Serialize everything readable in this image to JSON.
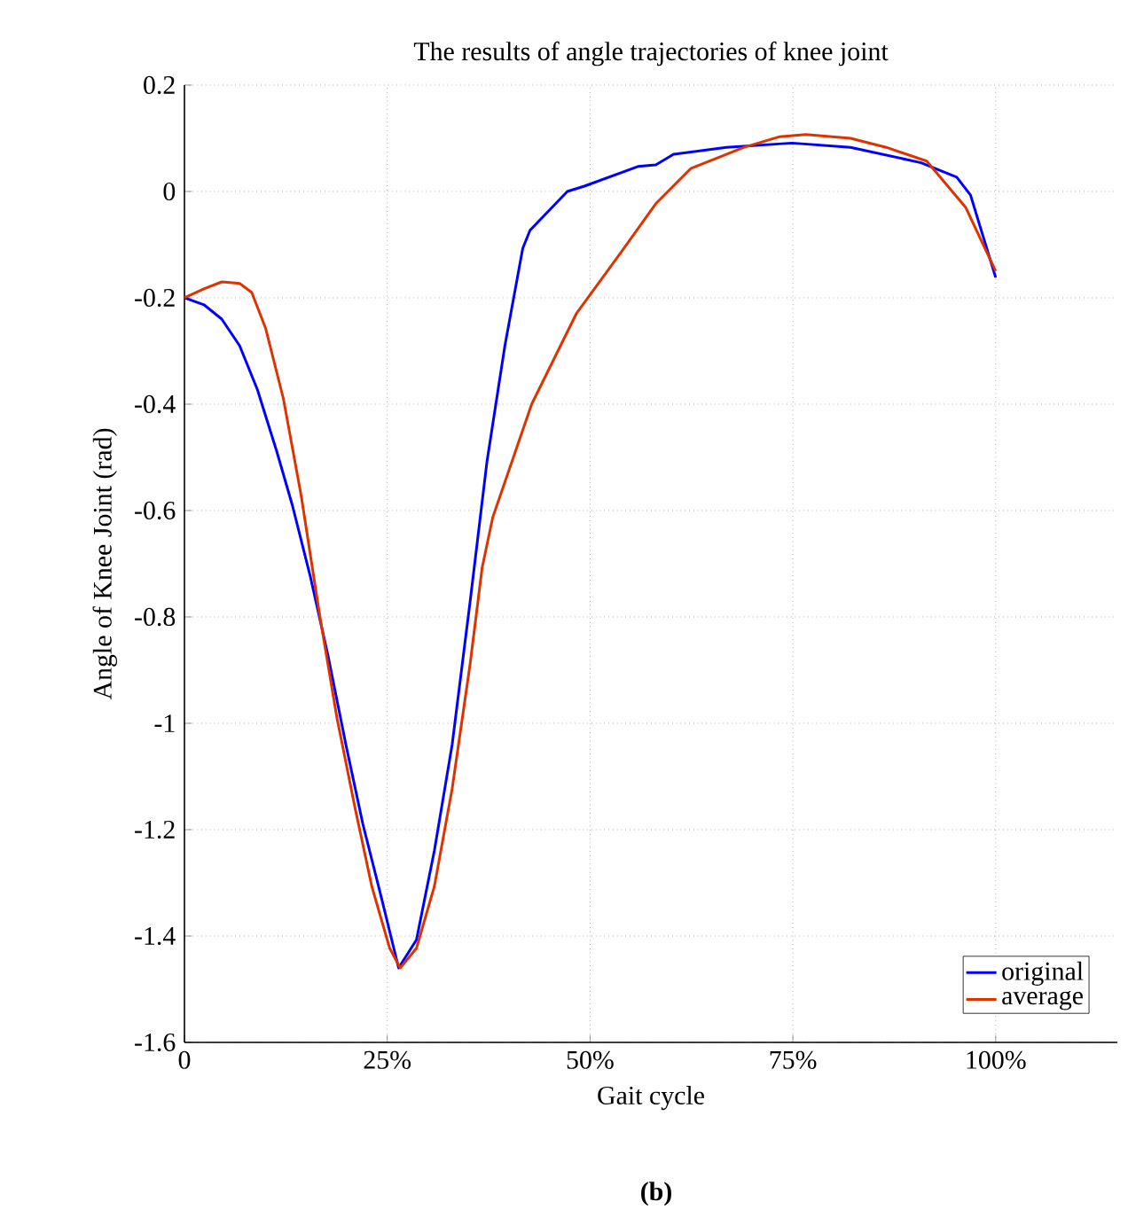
{
  "chart_data": {
    "type": "line",
    "title": "The results of angle trajectories of knee joint",
    "xlabel": "Gait cycle",
    "ylabel": "Angle of Knee Joint (rad)",
    "annotations": [
      "(b)"
    ],
    "xlim": [
      0,
      115
    ],
    "ylim": [
      -1.6,
      0.2
    ],
    "xticks": [
      0,
      {
        "value": 25,
        "label": "25%"
      },
      {
        "value": 50,
        "label": "50%"
      },
      {
        "value": 75,
        "label": "75%"
      },
      {
        "value": 100,
        "label": "100%"
      }
    ],
    "yticks": [
      -1.6,
      -1.4,
      -1.2,
      -1,
      -0.8,
      -0.6,
      -0.4,
      -0.2,
      0,
      0.2
    ],
    "grid": true,
    "legend": "bottom right",
    "line_style": "solid",
    "marker": "none",
    "series": [
      {
        "name": "original",
        "color": "#0000ff",
        "x": [
          0,
          2.4,
          4.6,
          6.8,
          9,
          11.4,
          13.3,
          15.5,
          17.7,
          19.9,
          22,
          24.2,
          26.4,
          28.6,
          30.8,
          33,
          35.2,
          37.3,
          39.5,
          41.7,
          42.6,
          47.2,
          49.3,
          55.9,
          58.1,
          60.3,
          66.8,
          74.9,
          82.1,
          90.8,
          95.2,
          96.9,
          100
        ],
        "values": [
          -0.2,
          -0.213,
          -0.24,
          -0.29,
          -0.373,
          -0.49,
          -0.59,
          -0.723,
          -0.873,
          -1.04,
          -1.19,
          -1.323,
          -1.46,
          -1.407,
          -1.24,
          -1.04,
          -0.773,
          -0.507,
          -0.29,
          -0.107,
          -0.073,
          0.0,
          0.01,
          0.047,
          0.05,
          0.07,
          0.083,
          0.091,
          0.083,
          0.054,
          0.027,
          -0.007,
          -0.162
        ]
      },
      {
        "name": "average",
        "color": "#dd3300",
        "x": [
          0,
          2.4,
          4.6,
          6.8,
          8.3,
          10,
          12.2,
          14.4,
          16.6,
          18.8,
          21,
          23.1,
          25.3,
          26.6,
          28.6,
          30.8,
          33,
          35.2,
          36.7,
          38,
          42.8,
          48.3,
          53.7,
          58.1,
          62.4,
          69,
          73.4,
          76.6,
          82.1,
          86.5,
          91.5,
          96.3,
          100
        ],
        "values": [
          -0.2,
          -0.183,
          -0.17,
          -0.173,
          -0.19,
          -0.257,
          -0.39,
          -0.573,
          -0.79,
          -0.99,
          -1.157,
          -1.307,
          -1.423,
          -1.46,
          -1.423,
          -1.307,
          -1.123,
          -0.89,
          -0.707,
          -0.613,
          -0.4,
          -0.23,
          -0.117,
          -0.023,
          0.043,
          0.083,
          0.103,
          0.107,
          0.1,
          0.083,
          0.057,
          -0.03,
          -0.15
        ]
      }
    ]
  }
}
